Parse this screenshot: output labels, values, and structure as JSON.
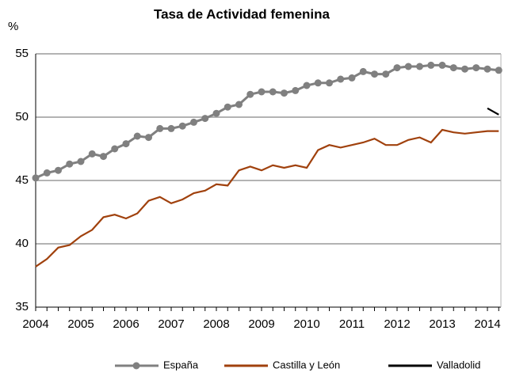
{
  "chart_data": {
    "type": "line",
    "title": "Tasa de Actividad femenina",
    "y_label": "%",
    "categories": [
      "2004",
      null,
      null,
      null,
      "2005",
      null,
      null,
      null,
      "2006",
      null,
      null,
      null,
      "2007",
      null,
      null,
      null,
      "2008",
      null,
      null,
      null,
      "2009",
      null,
      null,
      null,
      "2010",
      null,
      null,
      null,
      "2011",
      null,
      null,
      null,
      "2012",
      null,
      null,
      null,
      "2013",
      null,
      null,
      null,
      "2014",
      null
    ],
    "series": [
      {
        "name": "España",
        "color": "#808080",
        "marker": true,
        "values": [
          45.2,
          45.6,
          45.8,
          46.3,
          46.5,
          47.1,
          46.9,
          47.5,
          47.9,
          48.5,
          48.4,
          49.1,
          49.1,
          49.3,
          49.6,
          49.9,
          50.3,
          50.8,
          51.0,
          51.8,
          52.0,
          52.0,
          51.9,
          52.1,
          52.5,
          52.7,
          52.7,
          53.0,
          53.1,
          53.6,
          53.4,
          53.4,
          53.9,
          54.0,
          54.0,
          54.1,
          54.1,
          53.9,
          53.8,
          53.9,
          53.8,
          53.7
        ]
      },
      {
        "name": "Castilla y León",
        "color": "#a0410d",
        "marker": false,
        "values": [
          38.2,
          38.8,
          39.7,
          39.9,
          40.6,
          41.1,
          42.1,
          42.3,
          42.0,
          42.4,
          43.4,
          43.7,
          43.2,
          43.5,
          44.0,
          44.2,
          44.7,
          44.6,
          45.8,
          46.1,
          45.8,
          46.2,
          46.0,
          46.2,
          46.0,
          47.4,
          47.8,
          47.6,
          47.8,
          48.0,
          48.3,
          47.8,
          47.8,
          48.2,
          48.4,
          48.0,
          49.0,
          48.8,
          48.7,
          48.8,
          48.9,
          48.9
        ]
      },
      {
        "name": "Valladolid",
        "color": "#000000",
        "marker": false,
        "values": [
          null,
          null,
          null,
          null,
          null,
          null,
          null,
          null,
          null,
          null,
          null,
          null,
          null,
          null,
          null,
          null,
          null,
          null,
          null,
          null,
          null,
          null,
          null,
          null,
          null,
          null,
          null,
          null,
          null,
          null,
          null,
          null,
          null,
          null,
          null,
          null,
          null,
          null,
          null,
          null,
          50.7,
          50.2
        ]
      }
    ],
    "ylim": [
      35,
      55
    ],
    "yticks": [
      35,
      40,
      45,
      50,
      55
    ],
    "grid": true
  }
}
